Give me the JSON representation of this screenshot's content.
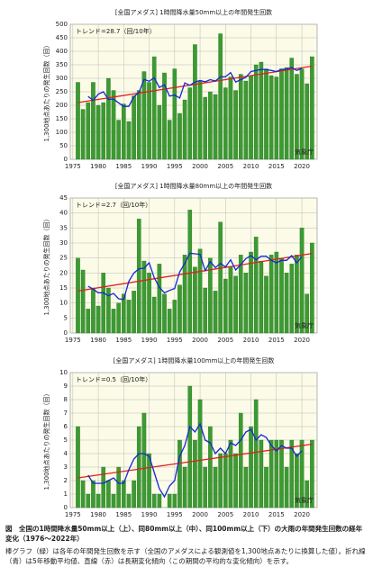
{
  "chart_data": [
    {
      "type": "bar",
      "title": "[全国アメダス] 1時間降水量50mm以上の年間発生回数",
      "ylabel": "1,300地点あたりの発生回数（回）",
      "annotation": "トレンド=28.7（回/10年）",
      "source": "気象庁",
      "x": [
        1976,
        1977,
        1978,
        1979,
        1980,
        1981,
        1982,
        1983,
        1984,
        1985,
        1986,
        1987,
        1988,
        1989,
        1990,
        1991,
        1992,
        1993,
        1994,
        1995,
        1996,
        1997,
        1998,
        1999,
        2000,
        2001,
        2002,
        2003,
        2004,
        2005,
        2006,
        2007,
        2008,
        2009,
        2010,
        2011,
        2012,
        2013,
        2014,
        2015,
        2016,
        2017,
        2018,
        2019,
        2020,
        2021,
        2022
      ],
      "values": [
        285,
        185,
        210,
        285,
        200,
        210,
        300,
        255,
        145,
        205,
        140,
        235,
        255,
        325,
        285,
        380,
        200,
        320,
        145,
        335,
        170,
        220,
        265,
        425,
        290,
        230,
        250,
        240,
        465,
        265,
        305,
        255,
        315,
        290,
        310,
        350,
        360,
        335,
        310,
        305,
        335,
        340,
        375,
        315,
        335,
        280,
        380
      ],
      "color": "#3c9a32",
      "moving_average": {
        "color": "#1428d2",
        "values": [
          null,
          null,
          233,
          218,
          241,
          250,
          222,
          223,
          209,
          196,
          196,
          232,
          248,
          296,
          289,
          302,
          266,
          276,
          234,
          238,
          227,
          283,
          274,
          286,
          292,
          287,
          295,
          290,
          305,
          306,
          321,
          286,
          295,
          304,
          325,
          329,
          333,
          332,
          329,
          325,
          333,
          334,
          340,
          329,
          337,
          null,
          null
        ]
      },
      "trend_line": {
        "color": "#e0201c",
        "x": [
          1976,
          2022
        ],
        "values": [
          210,
          345
        ]
      },
      "xlim": [
        1974.5,
        2023
      ],
      "xticks": [
        1975,
        1980,
        1985,
        1990,
        1995,
        2000,
        2005,
        2010,
        2015,
        2020
      ],
      "ylim": [
        0,
        500
      ],
      "yticks": [
        0,
        50,
        100,
        150,
        200,
        250,
        300,
        350,
        400,
        450,
        500
      ],
      "grid": true
    },
    {
      "type": "bar",
      "title": "[全国アメダス] 1時間降水量80mm以上の年間発生回数",
      "ylabel": "1,300地点あたりの発生回数（回）",
      "annotation": "トレンド=2.7（回/10年）",
      "source": "気象庁",
      "x": [
        1976,
        1977,
        1978,
        1979,
        1980,
        1981,
        1982,
        1983,
        1984,
        1985,
        1986,
        1987,
        1988,
        1989,
        1990,
        1991,
        1992,
        1993,
        1994,
        1995,
        1996,
        1997,
        1998,
        1999,
        2000,
        2001,
        2002,
        2003,
        2004,
        2005,
        2006,
        2007,
        2008,
        2009,
        2010,
        2011,
        2012,
        2013,
        2014,
        2015,
        2016,
        2017,
        2018,
        2019,
        2020,
        2021,
        2022
      ],
      "values": [
        25,
        21,
        8,
        15,
        9,
        20,
        15,
        8,
        10,
        13,
        11,
        14,
        38,
        24,
        20,
        12,
        23,
        13,
        8,
        11,
        16,
        26,
        41,
        22,
        28,
        15,
        25,
        14,
        37,
        18,
        22,
        19,
        26,
        20,
        27,
        32,
        24,
        19,
        26,
        27,
        25,
        20,
        23,
        26,
        35,
        13,
        30
      ],
      "color": "#3c9a32",
      "moving_average": {
        "color": "#1428d2",
        "values": [
          null,
          null,
          15.6,
          14.6,
          13.4,
          13.4,
          12.4,
          13.2,
          11.4,
          11.2,
          17.2,
          20,
          21.4,
          21.6,
          23.4,
          18.4,
          15.2,
          13.4,
          14.2,
          14.8,
          20.4,
          23.2,
          26.6,
          26.4,
          26.2,
          20.8,
          23.8,
          21.8,
          23.2,
          22,
          24.4,
          21,
          22.8,
          24.8,
          25.8,
          24.4,
          25.6,
          25.6,
          24.2,
          23.4,
          24.2,
          24.2,
          25.8,
          23.4,
          25.4,
          null,
          null
        ]
      },
      "trend_line": {
        "color": "#e0201c",
        "x": [
          1976,
          2022
        ],
        "values": [
          14,
          26.5
        ]
      },
      "xlim": [
        1974.5,
        2023
      ],
      "xticks": [
        1975,
        1980,
        1985,
        1990,
        1995,
        2000,
        2005,
        2010,
        2015,
        2020
      ],
      "ylim": [
        0,
        45
      ],
      "yticks": [
        0,
        5,
        10,
        15,
        20,
        25,
        30,
        35,
        40,
        45
      ],
      "grid": true
    },
    {
      "type": "bar",
      "title": "[全国アメダス] 1時間降水量100mm以上の年間発生回数",
      "ylabel": "1,300地点あたりの発生回数（回）",
      "annotation": "トレンド=0.5（回/10年）",
      "source": "気象庁",
      "x": [
        1976,
        1977,
        1978,
        1979,
        1980,
        1981,
        1982,
        1983,
        1984,
        1985,
        1986,
        1987,
        1988,
        1989,
        1990,
        1991,
        1992,
        1993,
        1994,
        1995,
        1996,
        1997,
        1998,
        1999,
        2000,
        2001,
        2002,
        2003,
        2004,
        2005,
        2006,
        2007,
        2008,
        2009,
        2010,
        2011,
        2012,
        2013,
        2014,
        2015,
        2016,
        2017,
        2018,
        2019,
        2020,
        2021,
        2022
      ],
      "values": [
        6,
        2,
        1,
        2,
        1,
        3,
        2,
        1,
        3,
        2,
        1,
        2,
        6,
        7,
        4,
        1,
        1,
        0,
        1,
        1,
        5,
        3,
        9,
        5,
        8,
        3,
        6,
        3,
        4,
        4,
        5,
        4,
        7,
        3,
        6,
        8,
        5,
        3,
        5,
        5,
        5,
        3,
        5,
        4,
        5,
        2,
        5
      ],
      "color": "#3c9a32",
      "moving_average": {
        "color": "#1428d2",
        "values": [
          null,
          null,
          2.4,
          1.8,
          1.8,
          1.8,
          2,
          2.2,
          1.8,
          1.8,
          2.8,
          3.6,
          4,
          4,
          3.8,
          2.6,
          1.4,
          0.8,
          1.6,
          2,
          3.8,
          4.6,
          6,
          5.6,
          6.2,
          5,
          4.8,
          4,
          4.4,
          4,
          4.8,
          4.6,
          5,
          5.6,
          5.8,
          5,
          5.4,
          5.2,
          4.6,
          4.2,
          4.6,
          4.4,
          4.4,
          3.8,
          4.2,
          null,
          null
        ]
      },
      "trend_line": {
        "color": "#e0201c",
        "x": [
          1976,
          2022
        ],
        "values": [
          2.2,
          4.7
        ]
      },
      "xlim": [
        1974.5,
        2023
      ],
      "xticks": [
        1975,
        1980,
        1985,
        1990,
        1995,
        2000,
        2005,
        2010,
        2015,
        2020
      ],
      "ylim": [
        0,
        10
      ],
      "yticks": [
        0,
        1,
        2,
        3,
        4,
        5,
        6,
        7,
        8,
        9,
        10
      ],
      "grid": true
    }
  ],
  "caption": {
    "title": "図　全国の1時間降水量50mm以上（上）、同80mm以上（中）、同100mm以上（下）の大雨の年間発生回数の経年変化（1976〜2022年）",
    "text": "棒グラフ（緑）は各年の年間発生回数を示す（全国のアメダスによる観測値を1,300地点あたりに換算した値）。折れ線（青）は5年移動平均値、直線（赤）は長期変化傾向（この期間の平均的な変化傾向）を示す。"
  }
}
